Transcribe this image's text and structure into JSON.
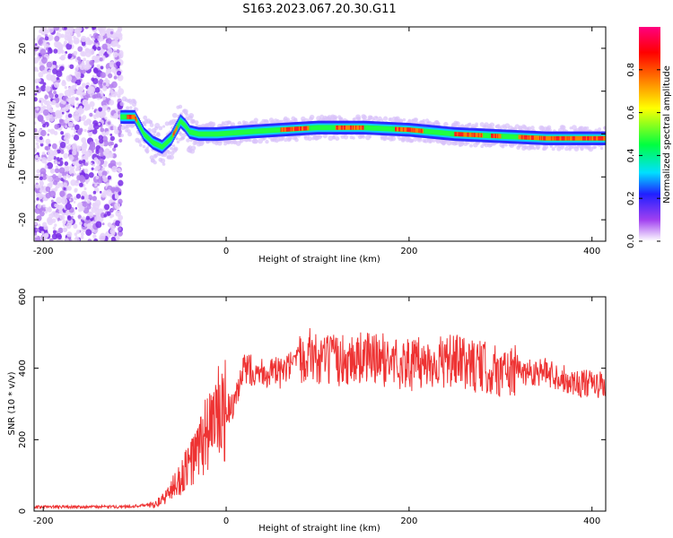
{
  "title": "S163.2023.067.20.30.G11",
  "chart_data": [
    {
      "type": "heatmap",
      "xlabel": "Height of straight line (km)",
      "ylabel": "Frequency (Hz)",
      "xlim": [
        -210,
        415
      ],
      "ylim": [
        -25,
        25
      ],
      "x_ticks": [
        -200,
        0,
        200,
        400
      ],
      "y_ticks": [
        -20,
        -10,
        0,
        10,
        20
      ],
      "colorbar": {
        "label": "Normalized spectral amplitude",
        "range": [
          0,
          1
        ],
        "ticks": [
          0.0,
          0.2,
          0.4,
          0.6,
          0.8
        ],
        "colormap": [
          "#ffffff",
          "#a040f0",
          "#2020ff",
          "#00e0ff",
          "#00ff40",
          "#ffff00",
          "#ff8000",
          "#ff0000",
          "#ff0080"
        ]
      },
      "ridge_center_hz": {
        "x": [
          -115,
          -100,
          -90,
          -80,
          -70,
          -60,
          -50,
          -45,
          -40,
          -30,
          -10,
          10,
          30,
          60,
          100,
          150,
          200,
          250,
          300,
          350,
          415
        ],
        "y": [
          4,
          4,
          0,
          -2,
          -3,
          -1,
          3,
          2,
          0.5,
          0,
          0,
          0.3,
          0.6,
          1,
          1.5,
          1.5,
          1,
          0,
          -0.5,
          -1,
          -1
        ]
      }
    },
    {
      "type": "line",
      "xlabel": "Height of straight line (km)",
      "ylabel": "SNR (10 * v/v)",
      "xlim": [
        -210,
        415
      ],
      "ylim": [
        0,
        600
      ],
      "x_ticks": [
        -200,
        0,
        200,
        400
      ],
      "y_ticks": [
        0,
        200,
        400,
        600
      ],
      "color": "#ee3333",
      "series": [
        {
          "x": [
            -210,
            -180,
            -150,
            -120,
            -100,
            -80,
            -70,
            -60,
            -50,
            -40,
            -30,
            -20,
            -10,
            0,
            10,
            20,
            40,
            60,
            80,
            90,
            100,
            120,
            150,
            180,
            200,
            250,
            300,
            350,
            380,
            415
          ],
          "y": [
            12,
            12,
            12,
            12,
            14,
            18,
            30,
            60,
            90,
            130,
            170,
            230,
            260,
            280,
            300,
            400,
            390,
            385,
            420,
            450,
            420,
            420,
            430,
            420,
            410,
            420,
            390,
            390,
            360,
            350
          ]
        }
      ]
    }
  ]
}
